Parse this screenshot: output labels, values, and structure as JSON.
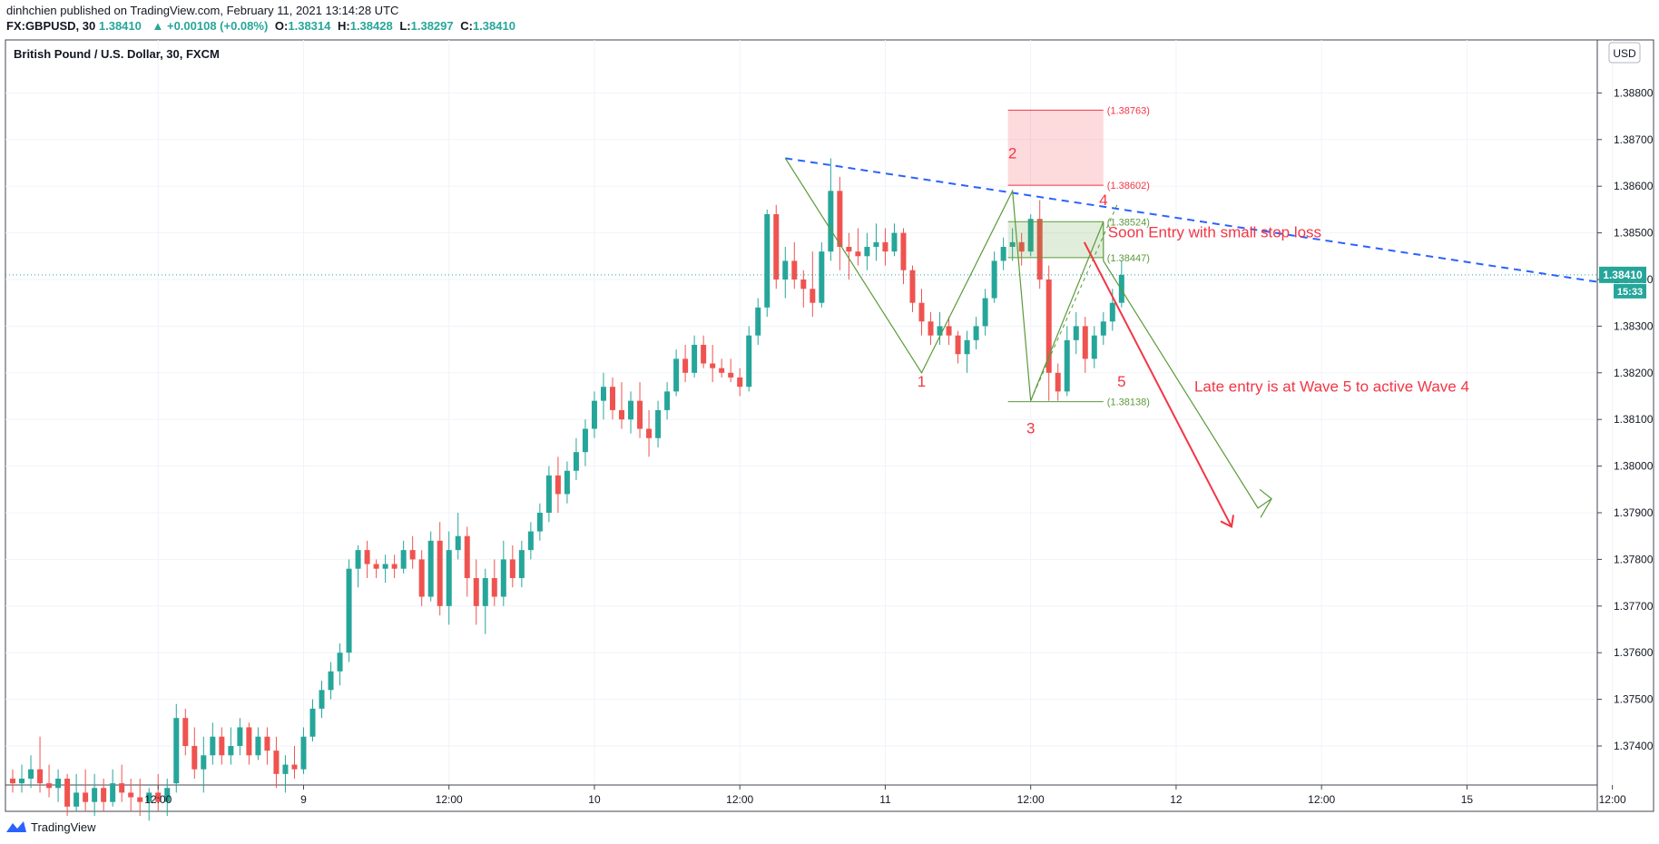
{
  "header": {
    "published_line": "dinhchien published on TradingView.com, February 11, 2021 13:14:28 UTC",
    "symbol": "FX:GBPUSD, 30",
    "last": "1.38410",
    "change": "▲ +0.00108 (+0.08%)",
    "open_label": "O:",
    "open": "1.38314",
    "high_label": "H:",
    "high": "1.38428",
    "low_label": "L:",
    "low": "1.38297",
    "close_label": "C:",
    "close": "1.38410"
  },
  "footer": {
    "brand": "TradingView",
    "logo_icon": "tradingview-logo-icon"
  },
  "chart_data": {
    "type": "candlestick",
    "title": "British Pound / U.S. Dollar, 30, FXCM",
    "currency_label": "USD",
    "price_axis": {
      "ticks": [
        "1.38800",
        "1.38700",
        "1.38600",
        "1.38500",
        "1.38400",
        "1.38300",
        "1.38200",
        "1.38100",
        "1.38000",
        "1.37900",
        "1.37800",
        "1.37700",
        "1.37600",
        "1.37500",
        "1.37400"
      ],
      "range": [
        1.3733,
        1.3898
      ]
    },
    "time_axis": {
      "ticks": [
        {
          "label": "12:00",
          "bar": 16
        },
        {
          "label": "9",
          "bar": 32
        },
        {
          "label": "12:00",
          "bar": 48
        },
        {
          "label": "10",
          "bar": 64
        },
        {
          "label": "12:00",
          "bar": 80
        },
        {
          "label": "11",
          "bar": 96
        },
        {
          "label": "12:00",
          "bar": 112
        },
        {
          "label": "12",
          "bar": 128
        },
        {
          "label": "12:00",
          "bar": 144
        },
        {
          "label": "15",
          "bar": 160
        },
        {
          "label": "12:00",
          "bar": 176
        }
      ]
    },
    "current_price": {
      "value": 1.3841,
      "label": "1.38410",
      "countdown": "15:33",
      "color": "#26a69a"
    },
    "colors": {
      "up": "#26a69a",
      "down": "#ef5350",
      "annotation": "#f23645",
      "pattern": "#5b9a3a",
      "trendline": "#2962ff"
    },
    "candles": [
      [
        1.3733,
        1.3735,
        1.373,
        1.3732
      ],
      [
        1.3732,
        1.3736,
        1.373,
        1.3733
      ],
      [
        1.3733,
        1.3738,
        1.3731,
        1.3735
      ],
      [
        1.3735,
        1.3742,
        1.373,
        1.3732
      ],
      [
        1.3732,
        1.3736,
        1.3729,
        1.3731
      ],
      [
        1.3731,
        1.3735,
        1.3728,
        1.3733
      ],
      [
        1.3733,
        1.3734,
        1.3725,
        1.3727
      ],
      [
        1.3727,
        1.3734,
        1.3726,
        1.373
      ],
      [
        1.373,
        1.3735,
        1.3726,
        1.3728
      ],
      [
        1.3728,
        1.3734,
        1.3725,
        1.3731
      ],
      [
        1.3731,
        1.3733,
        1.3726,
        1.3728
      ],
      [
        1.3728,
        1.3735,
        1.3727,
        1.3732
      ],
      [
        1.3732,
        1.3736,
        1.3728,
        1.373
      ],
      [
        1.373,
        1.3733,
        1.3726,
        1.3729
      ],
      [
        1.3729,
        1.3733,
        1.3725,
        1.3728
      ],
      [
        1.3728,
        1.3731,
        1.3724,
        1.373
      ],
      [
        1.373,
        1.3734,
        1.3726,
        1.3728
      ],
      [
        1.3728,
        1.3733,
        1.3725,
        1.3731
      ],
      [
        1.3732,
        1.3749,
        1.373,
        1.3746
      ],
      [
        1.3746,
        1.3748,
        1.3738,
        1.374
      ],
      [
        1.374,
        1.3744,
        1.3733,
        1.3735
      ],
      [
        1.3735,
        1.3742,
        1.373,
        1.3738
      ],
      [
        1.3738,
        1.3745,
        1.3736,
        1.3742
      ],
      [
        1.3742,
        1.3744,
        1.3736,
        1.3738
      ],
      [
        1.3738,
        1.3744,
        1.3736,
        1.374
      ],
      [
        1.374,
        1.3746,
        1.3738,
        1.3744
      ],
      [
        1.3744,
        1.3745,
        1.3736,
        1.3738
      ],
      [
        1.3738,
        1.3744,
        1.3737,
        1.3742
      ],
      [
        1.3742,
        1.3744,
        1.3736,
        1.3739
      ],
      [
        1.3739,
        1.3742,
        1.3731,
        1.3734
      ],
      [
        1.3734,
        1.3738,
        1.373,
        1.3736
      ],
      [
        1.3736,
        1.374,
        1.3733,
        1.3735
      ],
      [
        1.3735,
        1.3744,
        1.3734,
        1.3742
      ],
      [
        1.3742,
        1.375,
        1.3741,
        1.3748
      ],
      [
        1.3748,
        1.3754,
        1.3746,
        1.3752
      ],
      [
        1.3752,
        1.3758,
        1.375,
        1.3756
      ],
      [
        1.3756,
        1.3762,
        1.3753,
        1.376
      ],
      [
        1.376,
        1.378,
        1.3758,
        1.3778
      ],
      [
        1.3778,
        1.3783,
        1.3774,
        1.3782
      ],
      [
        1.3782,
        1.3784,
        1.3776,
        1.3779
      ],
      [
        1.3779,
        1.378,
        1.3776,
        1.3778
      ],
      [
        1.3778,
        1.3781,
        1.3775,
        1.3779
      ],
      [
        1.3779,
        1.3781,
        1.3776,
        1.3778
      ],
      [
        1.3778,
        1.3784,
        1.3777,
        1.3782
      ],
      [
        1.3782,
        1.3785,
        1.3778,
        1.378
      ],
      [
        1.378,
        1.3782,
        1.377,
        1.3772
      ],
      [
        1.3772,
        1.3786,
        1.3771,
        1.3784
      ],
      [
        1.3784,
        1.3788,
        1.3768,
        1.377
      ],
      [
        1.377,
        1.3786,
        1.3766,
        1.3782
      ],
      [
        1.3782,
        1.379,
        1.378,
        1.3785
      ],
      [
        1.3785,
        1.3787,
        1.3772,
        1.3776
      ],
      [
        1.3776,
        1.378,
        1.3766,
        1.377
      ],
      [
        1.377,
        1.3778,
        1.3764,
        1.3776
      ],
      [
        1.3776,
        1.378,
        1.377,
        1.3772
      ],
      [
        1.3772,
        1.3784,
        1.377,
        1.378
      ],
      [
        1.378,
        1.3783,
        1.3774,
        1.3776
      ],
      [
        1.3776,
        1.3784,
        1.3774,
        1.3782
      ],
      [
        1.3782,
        1.3788,
        1.378,
        1.3786
      ],
      [
        1.3786,
        1.3792,
        1.3784,
        1.379
      ],
      [
        1.379,
        1.38,
        1.3788,
        1.3798
      ],
      [
        1.3798,
        1.3802,
        1.379,
        1.3794
      ],
      [
        1.3794,
        1.3801,
        1.3792,
        1.3799
      ],
      [
        1.3799,
        1.3806,
        1.3797,
        1.3803
      ],
      [
        1.3803,
        1.381,
        1.38,
        1.3808
      ],
      [
        1.3808,
        1.3816,
        1.3806,
        1.3814
      ],
      [
        1.3814,
        1.382,
        1.381,
        1.3817
      ],
      [
        1.3817,
        1.3819,
        1.381,
        1.3812
      ],
      [
        1.3812,
        1.3818,
        1.3808,
        1.381
      ],
      [
        1.381,
        1.3816,
        1.3807,
        1.3814
      ],
      [
        1.3814,
        1.3818,
        1.3806,
        1.3808
      ],
      [
        1.3808,
        1.3812,
        1.3802,
        1.3806
      ],
      [
        1.3806,
        1.3814,
        1.3804,
        1.3812
      ],
      [
        1.3812,
        1.3818,
        1.381,
        1.3816
      ],
      [
        1.3816,
        1.3825,
        1.3815,
        1.3823
      ],
      [
        1.3823,
        1.3826,
        1.3818,
        1.382
      ],
      [
        1.382,
        1.3828,
        1.3819,
        1.3826
      ],
      [
        1.3826,
        1.3828,
        1.3821,
        1.3822
      ],
      [
        1.3822,
        1.3826,
        1.3818,
        1.3821
      ],
      [
        1.3821,
        1.3823,
        1.3819,
        1.382
      ],
      [
        1.382,
        1.3823,
        1.3818,
        1.3819
      ],
      [
        1.3819,
        1.3821,
        1.3815,
        1.3817
      ],
      [
        1.3817,
        1.383,
        1.3816,
        1.3828
      ],
      [
        1.3828,
        1.3836,
        1.3826,
        1.3834
      ],
      [
        1.3834,
        1.3855,
        1.3832,
        1.3854
      ],
      [
        1.3854,
        1.3856,
        1.3838,
        1.384
      ],
      [
        1.384,
        1.3847,
        1.3836,
        1.3844
      ],
      [
        1.3844,
        1.3848,
        1.3838,
        1.384
      ],
      [
        1.384,
        1.3842,
        1.3834,
        1.3838
      ],
      [
        1.3838,
        1.3846,
        1.3832,
        1.3835
      ],
      [
        1.3835,
        1.3848,
        1.3834,
        1.3846
      ],
      [
        1.3846,
        1.3866,
        1.3844,
        1.3859
      ],
      [
        1.3859,
        1.3862,
        1.3842,
        1.3847
      ],
      [
        1.3847,
        1.385,
        1.384,
        1.3846
      ],
      [
        1.3846,
        1.3851,
        1.3843,
        1.3845
      ],
      [
        1.3845,
        1.385,
        1.3842,
        1.3847
      ],
      [
        1.3847,
        1.3852,
        1.3844,
        1.3848
      ],
      [
        1.3848,
        1.3851,
        1.3843,
        1.3846
      ],
      [
        1.3846,
        1.3852,
        1.3845,
        1.385
      ],
      [
        1.385,
        1.3851,
        1.3839,
        1.3842
      ],
      [
        1.3842,
        1.3843,
        1.3833,
        1.3835
      ],
      [
        1.3835,
        1.3838,
        1.3828,
        1.3831
      ],
      [
        1.3831,
        1.3833,
        1.3826,
        1.3828
      ],
      [
        1.3828,
        1.3833,
        1.3826,
        1.383
      ],
      [
        1.383,
        1.3832,
        1.3826,
        1.3828
      ],
      [
        1.3828,
        1.3829,
        1.3822,
        1.3824
      ],
      [
        1.3824,
        1.3829,
        1.382,
        1.3827
      ],
      [
        1.3827,
        1.3832,
        1.3825,
        1.383
      ],
      [
        1.383,
        1.3838,
        1.3828,
        1.3836
      ],
      [
        1.3836,
        1.3846,
        1.3835,
        1.3844
      ],
      [
        1.3844,
        1.3849,
        1.3842,
        1.3847
      ],
      [
        1.3847,
        1.3851,
        1.3844,
        1.3848
      ],
      [
        1.3848,
        1.385,
        1.3843,
        1.3846
      ],
      [
        1.3846,
        1.3854,
        1.3845,
        1.3853
      ],
      [
        1.3853,
        1.3857,
        1.3838,
        1.384
      ],
      [
        1.384,
        1.3843,
        1.3814,
        1.382
      ],
      [
        1.382,
        1.3822,
        1.3814,
        1.3816
      ],
      [
        1.3816,
        1.383,
        1.3815,
        1.3827
      ],
      [
        1.3827,
        1.3833,
        1.3824,
        1.383
      ],
      [
        1.383,
        1.3832,
        1.382,
        1.3823
      ],
      [
        1.3823,
        1.383,
        1.3821,
        1.3828
      ],
      [
        1.3828,
        1.3833,
        1.3826,
        1.3831
      ],
      [
        1.3831,
        1.3838,
        1.3829,
        1.3835
      ],
      [
        1.3835,
        1.3844,
        1.3834,
        1.3841
      ]
    ],
    "price_boxes": [
      {
        "top": 1.38763,
        "bottom": 1.38602,
        "label_top": "(1.38763)",
        "label_bottom": "(1.38602)",
        "color": "#f23645",
        "fill": "rgba(242,54,69,0.18)"
      },
      {
        "top": 1.38524,
        "bottom": 1.38447,
        "label_top": "(1.38524)",
        "label_bottom": "(1.38447)",
        "color": "#5b9a3a",
        "fill": "rgba(91,154,58,0.18)"
      }
    ],
    "level_line": {
      "value": 1.38138,
      "label": "(1.38138)"
    },
    "wave_labels": [
      {
        "text": "1",
        "bar": 100,
        "price": 1.3817
      },
      {
        "text": "2",
        "bar": 110,
        "price": 1.3866
      },
      {
        "text": "3",
        "bar": 112,
        "price": 1.3807
      },
      {
        "text": "4",
        "bar": 120,
        "price": 1.3856
      },
      {
        "text": "5",
        "bar": 122,
        "price": 1.3817
      }
    ],
    "annotations": [
      {
        "text": "Soon Entry with small stop loss",
        "bar": 120.5,
        "price": 1.3849
      },
      {
        "text": "Late entry is at Wave 5 to active Wave 4",
        "bar": 130,
        "price": 1.3816
      }
    ]
  }
}
